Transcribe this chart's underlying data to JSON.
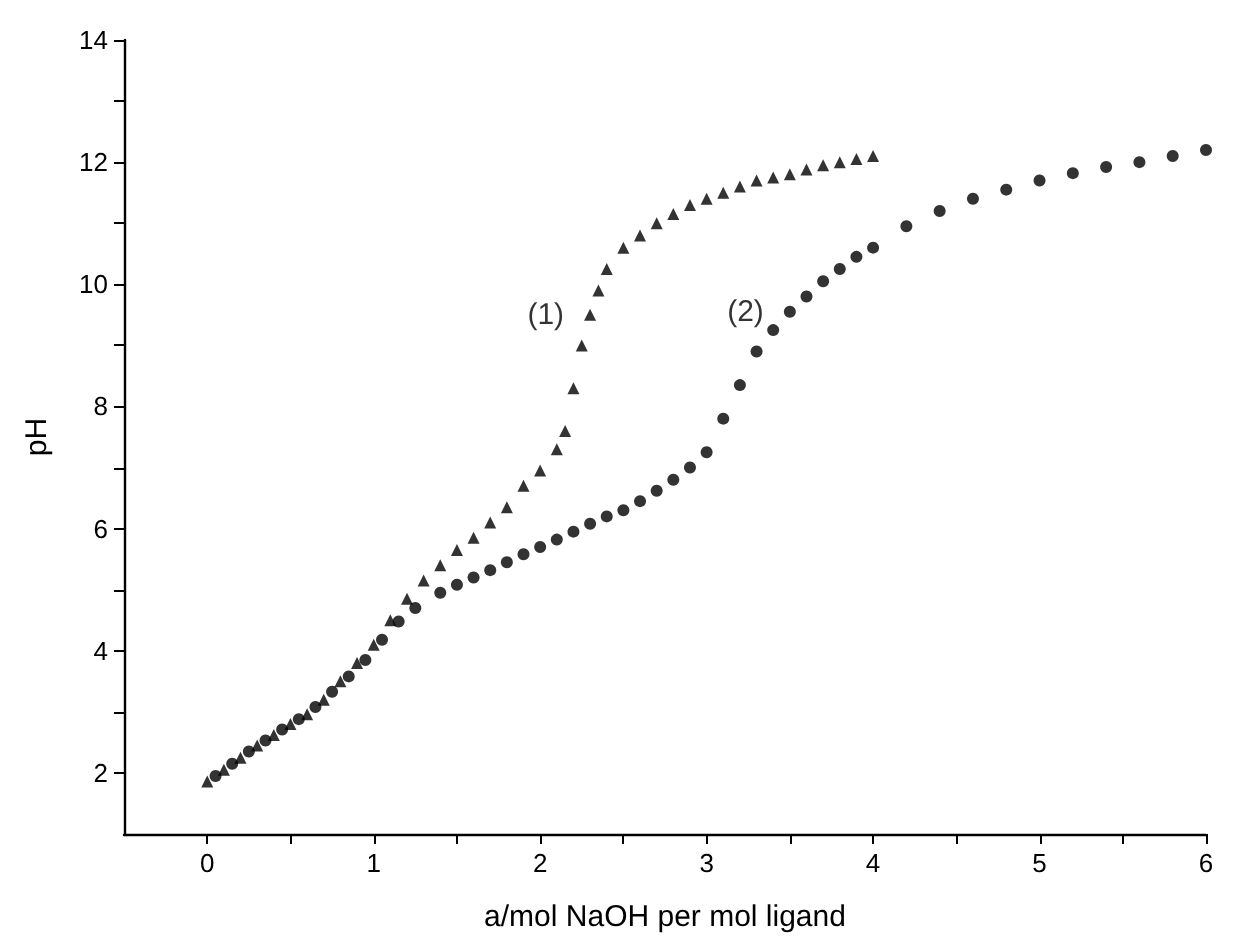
{
  "chart_data": {
    "type": "scatter",
    "xlabel": "a/mol NaOH per mol ligand",
    "ylabel": "pH",
    "xlim": [
      -0.5,
      6
    ],
    "xticks": [
      0,
      {
        "value": 0.5,
        "label": null
      },
      1,
      {
        "value": 1.5,
        "label": null
      },
      2,
      {
        "value": 2.5,
        "label": null
      },
      3,
      {
        "value": 3.5,
        "label": null
      },
      4,
      {
        "value": 4.5,
        "label": null
      },
      5,
      {
        "value": 5.5,
        "label": null
      },
      6
    ],
    "ylim": [
      1,
      14
    ],
    "yticks": [
      2,
      {
        "value": 3,
        "label": null
      },
      4,
      {
        "value": 5,
        "label": null
      },
      6,
      {
        "value": 7,
        "label": null
      },
      8,
      {
        "value": 9,
        "label": null
      },
      10,
      {
        "value": 11,
        "label": null
      },
      12,
      {
        "value": 13,
        "label": null
      },
      14
    ],
    "series": [
      {
        "name": "(1)",
        "marker": "triangle",
        "color": "#000000",
        "x": [
          0,
          0.1,
          0.2,
          0.3,
          0.4,
          0.5,
          0.6,
          0.7,
          0.8,
          0.9,
          1.0,
          1.1,
          1.2,
          1.3,
          1.4,
          1.5,
          1.6,
          1.7,
          1.8,
          1.9,
          2.0,
          2.1,
          2.15,
          2.2,
          2.25,
          2.3,
          2.35,
          2.4,
          2.5,
          2.6,
          2.7,
          2.8,
          2.9,
          3.0,
          3.1,
          3.2,
          3.3,
          3.4,
          3.5,
          3.6,
          3.7,
          3.8,
          3.9,
          4.0
        ],
        "values": [
          1.86,
          2.05,
          2.25,
          2.45,
          2.62,
          2.8,
          2.96,
          3.2,
          3.5,
          3.8,
          4.1,
          4.5,
          4.85,
          5.15,
          5.4,
          5.65,
          5.85,
          6.1,
          6.35,
          6.7,
          6.95,
          7.3,
          7.6,
          8.3,
          9.0,
          9.5,
          9.9,
          10.25,
          10.6,
          10.8,
          11.0,
          11.15,
          11.3,
          11.4,
          11.5,
          11.6,
          11.7,
          11.75,
          11.8,
          11.88,
          11.95,
          12.0,
          12.05,
          12.1
        ]
      },
      {
        "name": "(2)",
        "marker": "circle",
        "color": "#000000",
        "x": [
          0.05,
          0.15,
          0.25,
          0.35,
          0.45,
          0.55,
          0.65,
          0.75,
          0.85,
          0.95,
          1.05,
          1.15,
          1.25,
          1.4,
          1.5,
          1.6,
          1.7,
          1.8,
          1.9,
          2.0,
          2.1,
          2.2,
          2.3,
          2.4,
          2.5,
          2.6,
          2.7,
          2.8,
          2.9,
          3.0,
          3.1,
          3.2,
          3.3,
          3.4,
          3.5,
          3.6,
          3.7,
          3.8,
          3.9,
          4.0,
          4.2,
          4.4,
          4.6,
          4.8,
          5.0,
          5.2,
          5.4,
          5.6,
          5.8,
          6.0
        ],
        "values": [
          1.95,
          2.15,
          2.35,
          2.53,
          2.71,
          2.88,
          3.08,
          3.33,
          3.58,
          3.85,
          4.18,
          4.48,
          4.7,
          4.95,
          5.08,
          5.2,
          5.32,
          5.45,
          5.58,
          5.7,
          5.82,
          5.95,
          6.08,
          6.2,
          6.3,
          6.45,
          6.62,
          6.8,
          7.0,
          7.25,
          7.8,
          8.35,
          8.9,
          9.25,
          9.55,
          9.8,
          10.05,
          10.25,
          10.45,
          10.6,
          10.95,
          11.2,
          11.4,
          11.55,
          11.7,
          11.82,
          11.92,
          12.0,
          12.1,
          12.2
        ]
      }
    ]
  }
}
